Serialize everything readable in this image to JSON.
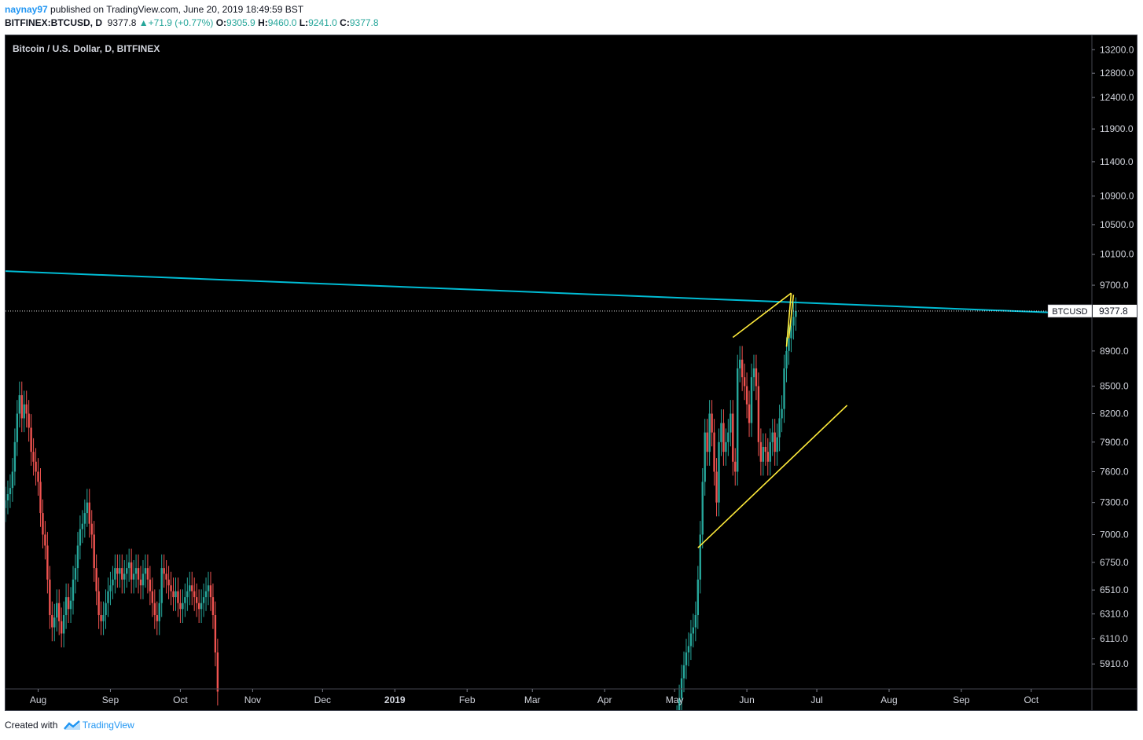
{
  "header": {
    "user": "naynay97",
    "published_text": "published on TradingView.com, June 20, 2019 18:49:59 BST",
    "symbol": "BITFINEX:BTCUSD, D",
    "last": "9377.8",
    "change": "+71.9 (+0.77%)",
    "o_label": "O:",
    "o": "9305.9",
    "h_label": "H:",
    "h": "9460.0",
    "l_label": "L:",
    "l": "9241.0",
    "c_label": "C:",
    "c": "9377.8"
  },
  "footer": {
    "created_with": "Created with",
    "brand": "TradingView"
  },
  "colors": {
    "up": "#26a69a",
    "down": "#ef5350",
    "trend_cyan": "#00bcd4",
    "trend_yellow": "#ffeb3b"
  },
  "chart_data": {
    "type": "candlestick",
    "title": "Bitcoin / U.S. Dollar, D, BITFINEX",
    "price_label": "BTCUSD",
    "last_price": 9377.8,
    "y_ticks": [
      13200,
      12800,
      12400,
      11900,
      11400,
      10900,
      10500,
      10100,
      9700,
      8900,
      8500,
      8200,
      7900,
      7600,
      7300,
      7000,
      6750,
      6510,
      6310,
      6110,
      5910
    ],
    "y_tick_labels": [
      "13200.0",
      "12800.0",
      "12400.0",
      "11900.0",
      "11400.0",
      "10900.0",
      "10500.0",
      "10100.0",
      "9700.0",
      "8900.0",
      "8500.0",
      "8200.0",
      "7900.0",
      "7600.0",
      "7300.0",
      "7000.0",
      "6750.0",
      "6510.0",
      "6310.0",
      "6110.0",
      "5910.0"
    ],
    "y_range": [
      5720,
      13450
    ],
    "log_scale": true,
    "x_range": [
      "2018-07-18",
      "2019-10-27"
    ],
    "x_ticks": [
      {
        "date": "2018-08-01",
        "label": "Aug"
      },
      {
        "date": "2018-09-01",
        "label": "Sep"
      },
      {
        "date": "2018-10-01",
        "label": "Oct"
      },
      {
        "date": "2018-11-01",
        "label": "Nov"
      },
      {
        "date": "2018-12-01",
        "label": "Dec"
      },
      {
        "date": "2019-01-01",
        "label": "2019"
      },
      {
        "date": "2019-02-01",
        "label": "Feb"
      },
      {
        "date": "2019-03-01",
        "label": "Mar"
      },
      {
        "date": "2019-04-01",
        "label": "Apr"
      },
      {
        "date": "2019-05-01",
        "label": "May"
      },
      {
        "date": "2019-06-01",
        "label": "Jun"
      },
      {
        "date": "2019-07-01",
        "label": "Jul"
      },
      {
        "date": "2019-08-01",
        "label": "Aug"
      },
      {
        "date": "2019-09-01",
        "label": "Sep"
      },
      {
        "date": "2019-10-01",
        "label": "Oct"
      }
    ],
    "segments": [
      {
        "start": "2018-07-18",
        "closes": [
          7320,
          7380,
          7440,
          7600,
          7900,
          8200,
          8400,
          8150,
          8300,
          8200,
          8050,
          7800,
          7700,
          7600,
          7500,
          7200,
          7000,
          6900,
          6600,
          6300,
          6200,
          6280,
          6400,
          6250,
          6150,
          6300,
          6450,
          6350,
          6420,
          6600,
          6700,
          6900,
          7050,
          7100,
          7200,
          7300,
          7100,
          7000,
          6700,
          6500,
          6300,
          6250,
          6300,
          6400,
          6500,
          6550,
          6600,
          6700,
          6650,
          6700,
          6600,
          6650,
          6700,
          6750,
          6600,
          6650,
          6700,
          6600,
          6550,
          6650,
          6700,
          6600,
          6500,
          6400,
          6300,
          6250,
          6400,
          6700,
          6650,
          6600,
          6550,
          6500,
          6450,
          6500,
          6400,
          6350,
          6400,
          6450,
          6500,
          6550,
          6500,
          6450,
          6400,
          6350,
          6400,
          6450,
          6500,
          6550,
          6450,
          6300,
          6000,
          5700
        ]
      },
      {
        "start": "2019-05-01",
        "closes": [
          5400,
          5500,
          5650,
          5800,
          5900,
          6000,
          6050,
          6150,
          6200,
          6300,
          6600,
          7000,
          7500,
          8000,
          7800,
          8200,
          8000,
          7600,
          7300,
          7900,
          8100,
          7800,
          7900,
          8000,
          8200,
          7700,
          7600,
          8700,
          8800,
          8600,
          8500,
          8300,
          8100,
          8600,
          8700,
          8500,
          7900,
          7700,
          7850,
          7800,
          7700,
          7900,
          8000,
          7800,
          7950,
          8150,
          8250,
          8700,
          8900,
          9050,
          9200,
          9306,
          9377.8
        ]
      }
    ],
    "annotations": [
      {
        "type": "trend_line",
        "color": "cyan",
        "from": {
          "date": "2018-07-18",
          "price": 9880
        },
        "to": {
          "date": "2019-10-27",
          "price": 9340
        }
      },
      {
        "type": "trend_line",
        "color": "yellow",
        "from": {
          "date": "2019-05-11",
          "price": 6880
        },
        "to": {
          "date": "2019-07-14",
          "price": 8290
        }
      },
      {
        "type": "trend_line",
        "color": "yellow",
        "from": {
          "date": "2019-05-26",
          "price": 9060
        },
        "to": {
          "date": "2019-06-20",
          "price": 9600
        }
      },
      {
        "type": "trend_line",
        "color": "yellow",
        "from": {
          "date": "2019-06-18",
          "price": 8950
        },
        "to": {
          "date": "2019-06-20",
          "price": 9600
        }
      },
      {
        "type": "trend_line",
        "color": "yellow",
        "from": {
          "date": "2019-06-19",
          "price": 9050
        },
        "to": {
          "date": "2019-06-21",
          "price": 9580
        }
      }
    ]
  }
}
